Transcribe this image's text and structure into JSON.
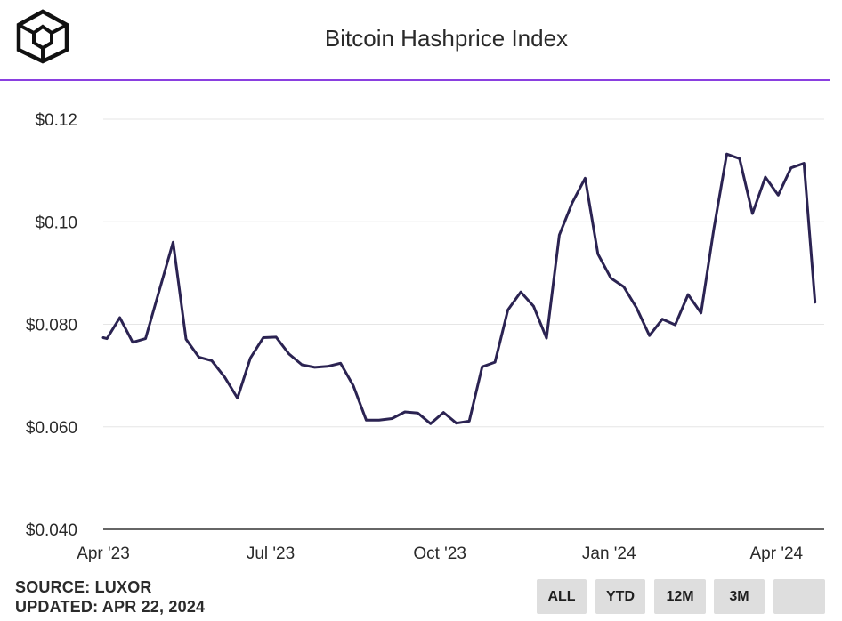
{
  "title": "Bitcoin Hashprice Index",
  "footer": {
    "source": "SOURCE: LUXOR",
    "updated": "UPDATED: APR 22, 2024"
  },
  "buttons": [
    "ALL",
    "YTD",
    "12M",
    "3M",
    ""
  ],
  "colors": {
    "accent": "#8a3fe0",
    "line": "#2b2352",
    "grid": "#e6e6e6",
    "button_bg": "#dedede"
  },
  "icons": {
    "logo": "cube-logo-icon"
  },
  "chart_data": {
    "type": "line",
    "xlabel": "",
    "ylabel": "",
    "ylim": [
      0.04,
      0.12
    ],
    "xlim": [
      "2023-04-01",
      "2024-04-27"
    ],
    "y_ticks": [
      0.04,
      0.06,
      0.08,
      0.1,
      0.12
    ],
    "y_tick_labels": [
      "$0.040",
      "$0.060",
      "$0.080",
      "$0.10",
      "$0.12"
    ],
    "x_ticks": [
      "2023-04-01",
      "2023-07-01",
      "2023-10-01",
      "2024-01-01",
      "2024-04-01"
    ],
    "x_tick_labels": [
      "Apr '23",
      "Jul '23",
      "Oct '23",
      "Jan '24",
      "Apr '24"
    ],
    "grid": true,
    "series": [
      {
        "x": [
          "2023-04-01",
          "2023-04-03",
          "2023-04-10",
          "2023-04-17",
          "2023-04-24",
          "2023-05-01",
          "2023-05-09",
          "2023-05-16",
          "2023-05-23",
          "2023-05-30",
          "2023-06-06",
          "2023-06-13",
          "2023-06-20",
          "2023-06-27",
          "2023-07-04",
          "2023-07-11",
          "2023-07-18",
          "2023-07-25",
          "2023-08-01",
          "2023-08-08",
          "2023-08-15",
          "2023-08-22",
          "2023-08-29",
          "2023-09-05",
          "2023-09-12",
          "2023-09-19",
          "2023-09-26",
          "2023-10-03",
          "2023-10-10",
          "2023-10-17",
          "2023-10-24",
          "2023-10-31",
          "2023-11-07",
          "2023-11-14",
          "2023-11-21",
          "2023-11-28",
          "2023-12-05",
          "2023-12-12",
          "2023-12-19",
          "2023-12-26",
          "2024-01-02",
          "2024-01-09",
          "2024-01-16",
          "2024-01-23",
          "2024-01-30",
          "2024-02-06",
          "2024-02-13",
          "2024-02-20",
          "2024-02-27",
          "2024-03-05",
          "2024-03-12",
          "2024-03-19",
          "2024-03-26",
          "2024-04-02",
          "2024-04-09",
          "2024-04-16",
          "2024-04-22"
        ],
        "values": [
          0.0774,
          0.0772,
          0.0813,
          0.0765,
          0.0772,
          0.086,
          0.096,
          0.0771,
          0.0736,
          0.0729,
          0.0697,
          0.0656,
          0.0734,
          0.0774,
          0.0775,
          0.0742,
          0.0721,
          0.0716,
          0.0718,
          0.0724,
          0.068,
          0.0613,
          0.0613,
          0.0616,
          0.0629,
          0.0627,
          0.0606,
          0.0628,
          0.0607,
          0.0611,
          0.0717,
          0.0726,
          0.0828,
          0.0863,
          0.0835,
          0.0773,
          0.0974,
          0.1037,
          0.1085,
          0.0937,
          0.089,
          0.0873,
          0.0832,
          0.0778,
          0.081,
          0.0799,
          0.0858,
          0.0822,
          0.0986,
          0.1132,
          0.1123,
          0.1016,
          0.1087,
          0.1052,
          0.1105,
          0.1114,
          0.0843
        ]
      }
    ]
  }
}
